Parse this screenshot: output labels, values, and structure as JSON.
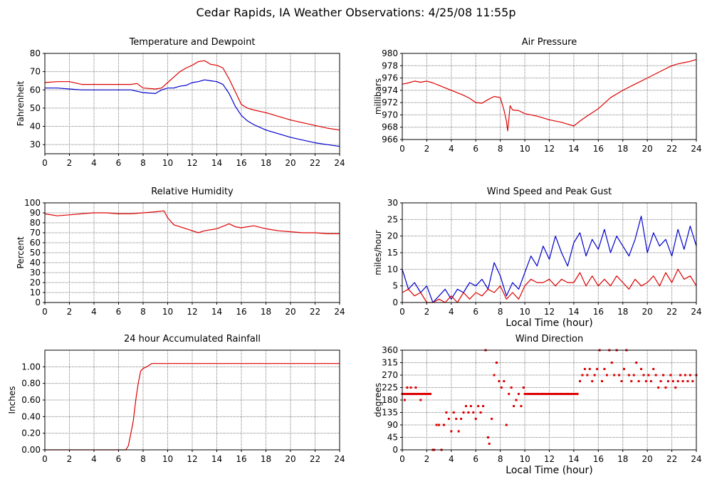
{
  "page": {
    "title": "Cedar Rapids, IA Weather Observations: 4/25/08 11:55p"
  },
  "colors": {
    "red": "#dd0000",
    "blue": "#0000cc",
    "grid": "#7f7f7f",
    "axis": "#000000"
  },
  "chart_data": [
    {
      "id": "temp",
      "type": "line",
      "title": "Temperature and Dewpoint",
      "xlabel": "",
      "ylabel": "Fahrenheit",
      "xlim": [
        0,
        24
      ],
      "ylim": [
        25,
        80
      ],
      "xticks": [
        0,
        2,
        4,
        6,
        8,
        10,
        12,
        14,
        16,
        18,
        20,
        22,
        24
      ],
      "yticks": [
        30,
        40,
        50,
        60,
        70,
        80
      ],
      "ytick_labels": [
        "30",
        "40",
        "50",
        "60",
        "70",
        "80"
      ],
      "grid": true,
      "series": [
        {
          "color": "red",
          "x": [
            0,
            1,
            2,
            3,
            4,
            5,
            6,
            7,
            7.5,
            8,
            9,
            9.5,
            10,
            10.5,
            11,
            11.5,
            12,
            12.5,
            13,
            13.5,
            14,
            14.5,
            15,
            15.5,
            16,
            16.5,
            17,
            18,
            19,
            20,
            21,
            22,
            23,
            24
          ],
          "y": [
            64,
            64.5,
            64.5,
            63,
            63,
            63,
            63,
            63,
            63.5,
            61,
            60.5,
            61,
            64,
            67,
            70,
            72,
            73.5,
            75.5,
            76,
            74,
            73.5,
            72,
            66,
            59,
            52,
            50,
            49,
            47.5,
            45.5,
            43.5,
            42,
            40.5,
            39,
            38
          ]
        },
        {
          "color": "blue",
          "x": [
            0,
            1,
            2,
            3,
            4,
            5,
            6,
            7,
            8,
            9,
            9.5,
            10,
            10.5,
            11,
            11.5,
            12,
            12.5,
            13,
            13.5,
            14,
            14.5,
            15,
            15.5,
            16,
            16.5,
            17,
            18,
            19,
            20,
            21,
            22,
            23,
            24
          ],
          "y": [
            61,
            61,
            60.5,
            60,
            60,
            60,
            60,
            60,
            58.5,
            58,
            60,
            61,
            61,
            62,
            62.5,
            64,
            64.5,
            65.5,
            65,
            64.5,
            63,
            58,
            51,
            46,
            43,
            41,
            38,
            36,
            34,
            32.5,
            31,
            30,
            29
          ]
        }
      ]
    },
    {
      "id": "pressure",
      "type": "line",
      "title": "Air Pressure",
      "xlabel": "",
      "ylabel": "millibars",
      "xlim": [
        0,
        24
      ],
      "ylim": [
        966,
        980
      ],
      "xticks": [
        0,
        2,
        4,
        6,
        8,
        10,
        12,
        14,
        16,
        18,
        20,
        22,
        24
      ],
      "yticks": [
        966,
        968,
        970,
        972,
        974,
        976,
        978,
        980
      ],
      "ytick_labels": [
        "966",
        "968",
        "970",
        "972",
        "974",
        "976",
        "978",
        "980"
      ],
      "grid": true,
      "series": [
        {
          "color": "red",
          "x": [
            0,
            0.5,
            1,
            1.5,
            2,
            2.5,
            3,
            4,
            5,
            5.5,
            6,
            6.5,
            7,
            7.5,
            8,
            8.3,
            8.5,
            8.6,
            8.7,
            8.8,
            9,
            9.5,
            10,
            11,
            12,
            13,
            13.5,
            14,
            14.5,
            15,
            16,
            17,
            18,
            19,
            20,
            21,
            22,
            22.5,
            23,
            23.5,
            24
          ],
          "y": [
            975,
            975.2,
            975.5,
            975.3,
            975.5,
            975.2,
            974.8,
            974,
            973.2,
            972.7,
            972,
            971.9,
            972.5,
            973,
            972.8,
            970.8,
            969,
            967.4,
            969.3,
            971.5,
            970.8,
            970.7,
            970.2,
            969.8,
            969.2,
            968.8,
            968.5,
            968.2,
            969,
            969.7,
            971,
            972.8,
            974,
            975,
            976,
            977,
            978,
            978.3,
            978.5,
            978.7,
            979
          ]
        }
      ]
    },
    {
      "id": "humidity",
      "type": "line",
      "title": "Relative Humidity",
      "xlabel": "",
      "ylabel": "Percent",
      "xlim": [
        0,
        24
      ],
      "ylim": [
        0,
        100
      ],
      "xticks": [
        0,
        2,
        4,
        6,
        8,
        10,
        12,
        14,
        16,
        18,
        20,
        22,
        24
      ],
      "yticks": [
        0,
        10,
        20,
        30,
        40,
        50,
        60,
        70,
        80,
        90,
        100
      ],
      "ytick_labels": [
        "0",
        "10",
        "20",
        "30",
        "40",
        "50",
        "60",
        "70",
        "80",
        "90",
        "100"
      ],
      "grid": true,
      "series": [
        {
          "color": "red",
          "x": [
            0,
            1,
            2,
            3,
            4,
            5,
            6,
            7,
            8,
            9,
            9.7,
            10,
            10.5,
            11,
            12,
            12.5,
            13,
            14,
            15,
            15.5,
            16,
            17,
            18,
            19,
            20,
            21,
            22,
            23,
            24
          ],
          "y": [
            89,
            87,
            88,
            89,
            90,
            90,
            89,
            89,
            90,
            91,
            92,
            85,
            78,
            76,
            72,
            70,
            72,
            74,
            79,
            76,
            75,
            77,
            74,
            72,
            71,
            70,
            70,
            69,
            69
          ]
        }
      ]
    },
    {
      "id": "wind",
      "type": "line",
      "title": "Wind Speed and Peak Gust",
      "xlabel": "Local Time (hour)",
      "ylabel": "miles/hour",
      "xlim": [
        0,
        24
      ],
      "ylim": [
        0,
        30
      ],
      "xticks": [
        0,
        2,
        4,
        6,
        8,
        10,
        12,
        14,
        16,
        18,
        20,
        22,
        24
      ],
      "yticks": [
        0,
        5,
        10,
        15,
        20,
        25,
        30
      ],
      "ytick_labels": [
        "0",
        "5",
        "10",
        "15",
        "20",
        "25",
        "30"
      ],
      "grid": true,
      "series": [
        {
          "color": "blue",
          "x": [
            0,
            0.5,
            1,
            1.5,
            2,
            2.5,
            3,
            3.5,
            4,
            4.5,
            5,
            5.5,
            6,
            6.5,
            7,
            7.5,
            8,
            8.5,
            9,
            9.5,
            10,
            10.5,
            11,
            11.5,
            12,
            12.5,
            13,
            13.5,
            14,
            14.5,
            15,
            15.5,
            16,
            16.5,
            17,
            17.5,
            18,
            18.5,
            19,
            19.5,
            20,
            20.5,
            21,
            21.5,
            22,
            22.5,
            23,
            23.5,
            24
          ],
          "y": [
            10,
            4,
            6,
            3,
            5,
            0,
            2,
            4,
            1,
            4,
            3,
            6,
            5,
            7,
            4,
            12,
            8,
            2,
            6,
            4,
            9,
            14,
            11,
            17,
            13,
            20,
            15,
            11,
            18,
            21,
            14,
            19,
            16,
            22,
            15,
            20,
            17,
            14,
            19,
            26,
            15,
            21,
            17,
            19,
            14,
            22,
            16,
            23,
            17
          ]
        },
        {
          "color": "red",
          "x": [
            0,
            0.5,
            1,
            1.5,
            2,
            2.5,
            3,
            3.5,
            4,
            4.5,
            5,
            5.5,
            6,
            6.5,
            7,
            7.5,
            8,
            8.5,
            9,
            9.5,
            10,
            10.5,
            11,
            11.5,
            12,
            12.5,
            13,
            13.5,
            14,
            14.5,
            15,
            15.5,
            16,
            16.5,
            17,
            17.5,
            18,
            18.5,
            19,
            19.5,
            20,
            20.5,
            21,
            21.5,
            22,
            22.5,
            23,
            23.5,
            24
          ],
          "y": [
            3,
            4,
            2,
            3,
            0,
            0,
            1,
            0,
            2,
            0,
            3,
            1,
            3,
            2,
            4,
            3,
            5,
            1,
            3,
            1,
            5,
            7,
            6,
            6,
            7,
            5,
            7,
            6,
            6,
            9,
            5,
            8,
            5,
            7,
            5,
            8,
            6,
            4,
            7,
            5,
            6,
            8,
            5,
            9,
            6,
            10,
            7,
            8,
            5
          ]
        }
      ]
    },
    {
      "id": "rain",
      "type": "line",
      "title": "24 hour Accumulated Rainfall",
      "xlabel": "",
      "ylabel": "Inches",
      "xlim": [
        0,
        24
      ],
      "ylim": [
        0,
        1.2
      ],
      "xticks": [
        0,
        2,
        4,
        6,
        8,
        10,
        12,
        14,
        16,
        18,
        20,
        22,
        24
      ],
      "yticks": [
        0,
        0.2,
        0.4,
        0.6,
        0.8,
        1.0
      ],
      "ytick_labels": [
        "0.00",
        "0.20",
        "0.40",
        "0.60",
        "0.80",
        "1.00"
      ],
      "grid": true,
      "series": [
        {
          "color": "red",
          "x": [
            0,
            6.6,
            6.8,
            7.0,
            7.2,
            7.4,
            7.6,
            7.8,
            8.0,
            8.3,
            8.7,
            24
          ],
          "y": [
            0,
            0,
            0.05,
            0.2,
            0.35,
            0.6,
            0.8,
            0.95,
            0.98,
            1.0,
            1.04,
            1.04
          ]
        }
      ]
    },
    {
      "id": "winddir",
      "type": "scatter",
      "title": "Wind Direction",
      "xlabel": "Local Time (hour)",
      "ylabel": "degrees",
      "xlim": [
        0,
        24
      ],
      "ylim": [
        0,
        360
      ],
      "xticks": [
        0,
        2,
        4,
        6,
        8,
        10,
        12,
        14,
        16,
        18,
        20,
        22,
        24
      ],
      "yticks": [
        0,
        45,
        90,
        135,
        180,
        225,
        270,
        315,
        360
      ],
      "ytick_labels": [
        "0",
        "45",
        "90",
        "135",
        "180",
        "225",
        "270",
        "315",
        "360"
      ],
      "grid": true,
      "series": [
        {
          "color": "red",
          "x": [
            0,
            0.2,
            0.4,
            0.5,
            0.7,
            0.9,
            1.1,
            1.3,
            1.5,
            1.7,
            1.9,
            2.1,
            2.3,
            2.5,
            2.6,
            2.8,
            3.0,
            3.2,
            3.4,
            3.6,
            3.8,
            4.0,
            4.2,
            4.4,
            4.6,
            4.8,
            5.0,
            5.2,
            5.4,
            5.6,
            5.8,
            6.0,
            6.2,
            6.4,
            6.6,
            6.8,
            7.0,
            7.1,
            7.3,
            7.5,
            7.7,
            7.9,
            8.1,
            8.3,
            8.5,
            8.7,
            8.9,
            9.1,
            9.3,
            9.5,
            9.7,
            9.9,
            10.0,
            10.5,
            11.0,
            11.5,
            12.0,
            12.5,
            13.0,
            13.5,
            14.0,
            14.3,
            14.5,
            14.7,
            14.9,
            15.1,
            15.3,
            15.5,
            15.7,
            15.9,
            16.1,
            16.3,
            16.5,
            16.7,
            16.9,
            17.1,
            17.3,
            17.5,
            17.7,
            17.9,
            18.1,
            18.3,
            18.5,
            18.7,
            18.9,
            19.1,
            19.3,
            19.5,
            19.7,
            19.9,
            20.1,
            20.3,
            20.5,
            20.7,
            20.9,
            21.1,
            21.3,
            21.5,
            21.7,
            21.9,
            22.1,
            22.3,
            22.5,
            22.7,
            22.9,
            23.1,
            23.3,
            23.5,
            23.7,
            24.0
          ],
          "y": [
            202,
            180,
            225,
            202,
            225,
            202,
            225,
            202,
            180,
            202,
            202,
            202,
            202,
            0,
            0,
            90,
            90,
            0,
            90,
            135,
            112,
            67,
            135,
            112,
            67,
            112,
            135,
            158,
            135,
            158,
            135,
            112,
            158,
            135,
            158,
            360,
            45,
            22,
            112,
            270,
            315,
            248,
            225,
            248,
            90,
            202,
            225,
            158,
            180,
            202,
            158,
            225,
            202,
            202,
            202,
            202,
            202,
            202,
            202,
            202,
            202,
            202,
            248,
            270,
            292,
            270,
            292,
            248,
            270,
            292,
            360,
            248,
            292,
            270,
            360,
            315,
            270,
            360,
            270,
            248,
            292,
            360,
            270,
            248,
            270,
            315,
            248,
            292,
            270,
            248,
            270,
            248,
            292,
            270,
            225,
            248,
            270,
            225,
            248,
            270,
            248,
            225,
            248,
            270,
            248,
            270,
            248,
            270,
            248,
            270
          ]
        }
      ]
    }
  ]
}
